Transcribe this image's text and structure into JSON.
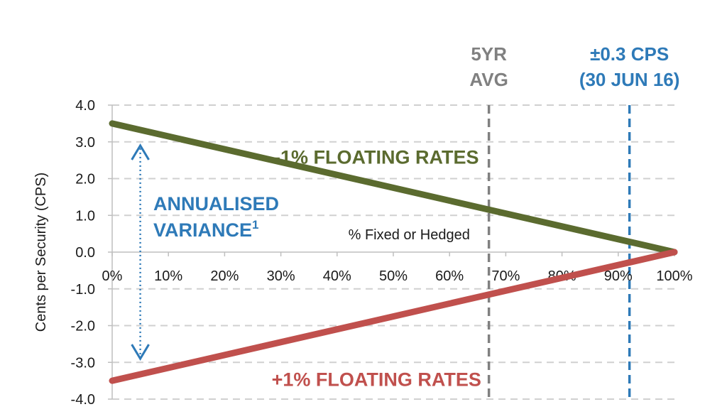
{
  "chart_data": {
    "type": "line",
    "ylabel": "Cents per Security (CPS)",
    "xlabel": "% Fixed or Hedged",
    "x_ticks": [
      "0%",
      "10%",
      "20%",
      "30%",
      "40%",
      "50%",
      "60%",
      "70%",
      "80%",
      "90%",
      "100%"
    ],
    "y_ticks": [
      "4.0",
      "3.0",
      "2.0",
      "1.0",
      "0.0",
      "-1.0",
      "-2.0",
      "-3.0",
      "-4.0"
    ],
    "xlim": [
      0,
      100
    ],
    "ylim": [
      -4,
      4
    ],
    "grid": "horizontal dashed",
    "series": [
      {
        "name": "-1% FLOATING RATES",
        "color": "#5b6b2f",
        "x": [
          0,
          100
        ],
        "y": [
          3.5,
          0.0
        ]
      },
      {
        "name": "+1% FLOATING RATES",
        "color": "#c0504d",
        "x": [
          0,
          100
        ],
        "y": [
          -3.5,
          0.0
        ]
      }
    ],
    "reference_lines": [
      {
        "label_line1": "5YR",
        "label_line2": "AVG",
        "x": 67,
        "color": "#808080"
      },
      {
        "label_line1": "±0.3 CPS",
        "label_line2": "(30 JUN 16)",
        "x": 92,
        "color": "#2e7ab8"
      }
    ],
    "annotation": {
      "text_line1": "ANNUALISED",
      "text_line2": "VARIANCE",
      "superscript": "1",
      "color": "#2e7ab8",
      "arrow_x": 5,
      "arrow_y_top": 2.9,
      "arrow_y_bottom": -2.9
    }
  }
}
